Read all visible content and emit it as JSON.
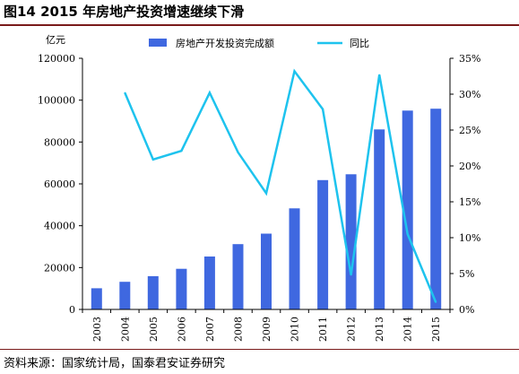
{
  "figure": {
    "title": "图14 2015 年房地产投资增速继续下滑",
    "source": "资料来源：国家统计局，国泰君安证券研究"
  },
  "colors": {
    "bar": "#3f68e0",
    "line": "#1ec3ee",
    "rule": "#7a1a1a"
  },
  "chart_data": {
    "type": "bar",
    "unit_left": "亿元",
    "categories": [
      "2003",
      "2004",
      "2005",
      "2006",
      "2007",
      "2008",
      "2009",
      "2010",
      "2011",
      "2012",
      "2013",
      "2014",
      "2015"
    ],
    "series": [
      {
        "name": "房地产开发投资完成额",
        "type": "bar",
        "axis": "left",
        "values": [
          10100,
          13200,
          15900,
          19400,
          25300,
          31200,
          36200,
          48300,
          61800,
          64600,
          86000,
          95000,
          95900
        ]
      },
      {
        "name": "同比",
        "type": "line",
        "axis": "right",
        "values": [
          null,
          30.2,
          20.9,
          22.1,
          30.2,
          21.9,
          16.2,
          33.2,
          27.9,
          4.8,
          32.7,
          10.5,
          1.0
        ]
      }
    ],
    "y_left": {
      "min": 0,
      "max": 120000,
      "ticks": [
        "0",
        "20000",
        "40000",
        "60000",
        "80000",
        "100000",
        "120000"
      ]
    },
    "y_right": {
      "min": 0,
      "max": 35,
      "ticks": [
        "0%",
        "5%",
        "10%",
        "15%",
        "20%",
        "25%",
        "30%",
        "35%"
      ]
    },
    "legend_position": "top",
    "grid": false
  }
}
